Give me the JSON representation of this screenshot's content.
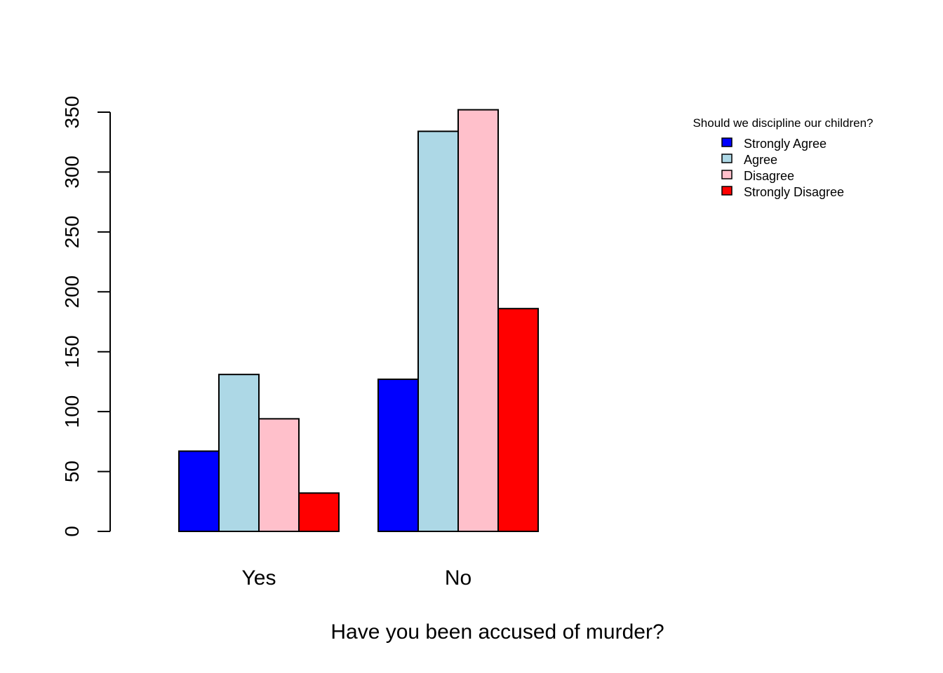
{
  "chart_data": {
    "type": "bar",
    "categories": [
      "Yes",
      "No"
    ],
    "series": [
      {
        "name": "Strongly Agree",
        "color": "#0000ff",
        "values": [
          67,
          127
        ]
      },
      {
        "name": "Agree",
        "color": "#add8e6",
        "values": [
          131,
          334
        ]
      },
      {
        "name": "Disagree",
        "color": "#ffc0cb",
        "values": [
          94,
          352
        ]
      },
      {
        "name": "Strongly Disagree",
        "color": "#ff0000",
        "values": [
          32,
          186
        ]
      }
    ],
    "xlabel": "Have you been accused of murder?",
    "ylabel": "",
    "ylim": [
      0,
      350
    ],
    "yticks": [
      0,
      50,
      100,
      150,
      200,
      250,
      300,
      350
    ],
    "legend": {
      "title": "Should we discipline our children?",
      "placement": "top-right"
    },
    "grid": false
  }
}
